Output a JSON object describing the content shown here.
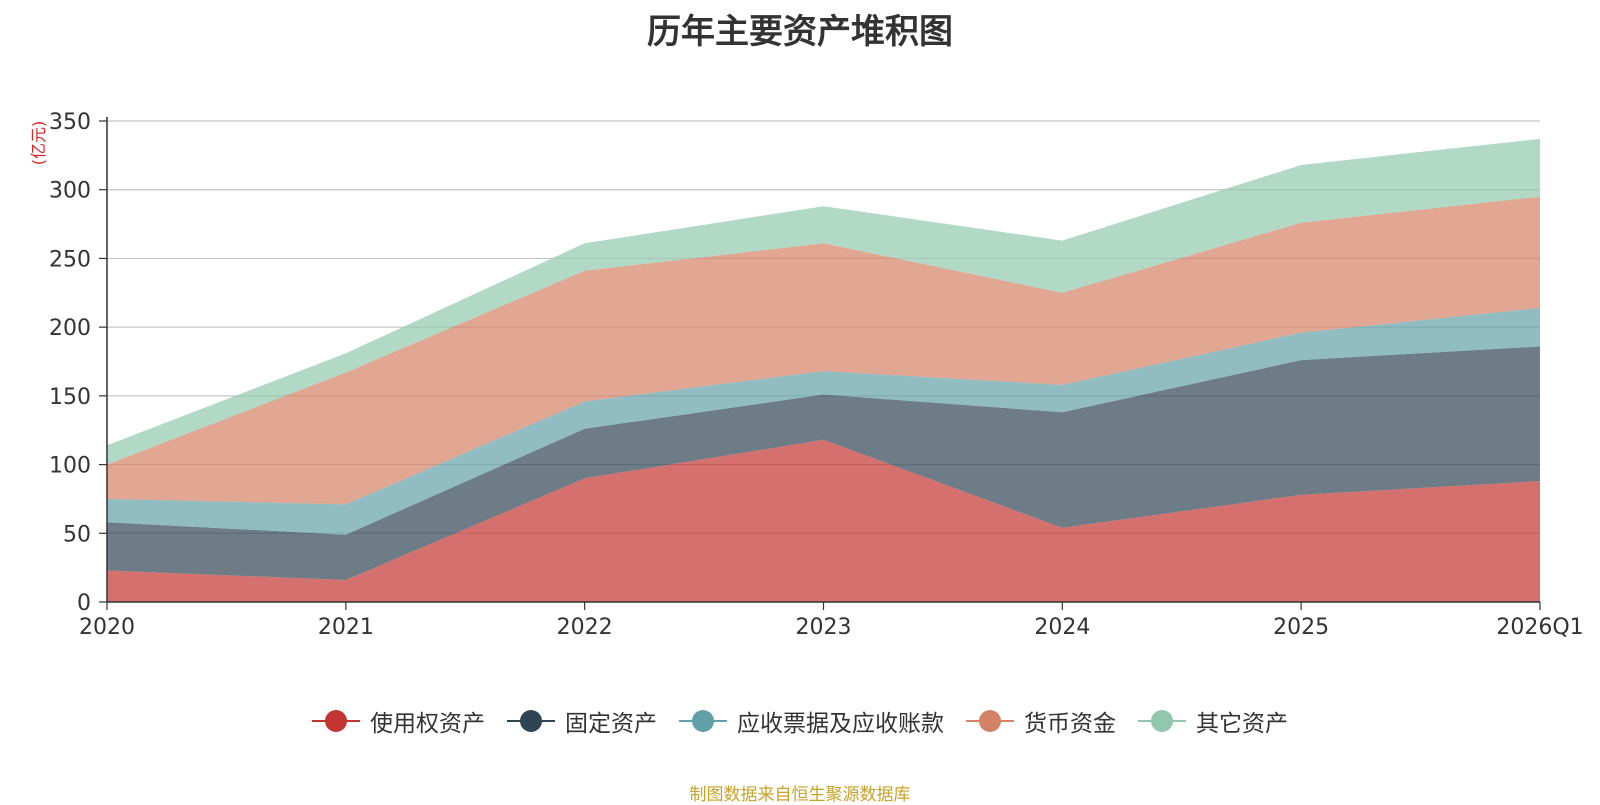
{
  "chart_data": {
    "type": "area",
    "stacked": true,
    "title": "历年主要资产堆积图",
    "ylabel": "(亿元)",
    "categories": [
      "2020",
      "2021",
      "2022",
      "2023",
      "2024",
      "2025",
      "2026Q1"
    ],
    "ylim": [
      0,
      350
    ],
    "yticks": [
      0,
      50,
      100,
      150,
      200,
      250,
      300,
      350
    ],
    "grid": true,
    "legend_position": "bottom",
    "series": [
      {
        "name": "使用权资产",
        "color": "#c23531",
        "values": [
          23,
          16,
          90,
          118,
          54,
          78,
          88
        ]
      },
      {
        "name": "固定资产",
        "color": "#2f4554",
        "values": [
          35,
          33,
          36,
          33,
          84,
          98,
          98
        ]
      },
      {
        "name": "应收票据及应收账款",
        "color": "#61a0a8",
        "values": [
          17,
          22,
          20,
          17,
          20,
          20,
          28
        ]
      },
      {
        "name": "货币资金",
        "color": "#d48265",
        "values": [
          25,
          96,
          95,
          93,
          67,
          80,
          81
        ]
      },
      {
        "name": "其它资产",
        "color": "#91c7ae",
        "values": [
          14,
          14,
          20,
          27,
          38,
          42,
          42
        ]
      }
    ]
  },
  "source_note": "制图数据来自恒生聚源数据库"
}
